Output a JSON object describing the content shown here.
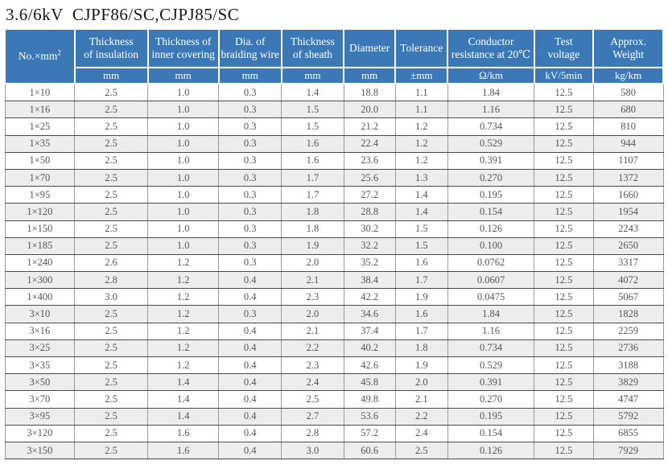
{
  "page": {
    "title": "3.6/6kV  CJPF86/SC,CJPJ85/SC"
  },
  "colors": {
    "header_blue": "#3c78b5",
    "stripe_gray": "#ededed",
    "row_border_dark": "#4a4a4a",
    "column_border_gray": "#9a9a9a",
    "body_text": "#555555",
    "header_text": "#ffffff"
  },
  "table": {
    "row_header": {
      "label": "No.×mm",
      "sup": "2"
    },
    "columns": [
      {
        "line1": "Thickness",
        "line2": "of insulation",
        "unit": "mm"
      },
      {
        "line1": "Thickness of",
        "line2": "inner covering",
        "unit": "mm"
      },
      {
        "line1": "Dia. of",
        "line2": "braiding wire",
        "unit": "mm"
      },
      {
        "line1": "Thickness",
        "line2": "of sheath",
        "unit": "mm"
      },
      {
        "line1": "Diameter",
        "line2": "",
        "unit": "mm"
      },
      {
        "line1": "Tolerance",
        "line2": "",
        "unit": "±mm"
      },
      {
        "line1": "Conductor",
        "line2": "resistance at 20℃",
        "unit": "Ω/km"
      },
      {
        "line1": "Test",
        "line2": "voltage",
        "unit": "kV/5min"
      },
      {
        "line1": "Approx.",
        "line2": "Weight",
        "unit": "kg/km"
      }
    ],
    "rows": [
      [
        "1×10",
        "2.5",
        "1.0",
        "0.3",
        "1.4",
        "18.8",
        "1.1",
        "1.84",
        "12.5",
        "580"
      ],
      [
        "1×16",
        "2.5",
        "1.0",
        "0.3",
        "1.5",
        "20.0",
        "1.1",
        "1.16",
        "12.5",
        "680"
      ],
      [
        "1×25",
        "2.5",
        "1.0",
        "0.3",
        "1.5",
        "21.2",
        "1.2",
        "0.734",
        "12.5",
        "810"
      ],
      [
        "1×35",
        "2.5",
        "1.0",
        "0.3",
        "1.6",
        "22.4",
        "1.2",
        "0.529",
        "12.5",
        "944"
      ],
      [
        "1×50",
        "2.5",
        "1.0",
        "0.3",
        "1.6",
        "23.6",
        "1.2",
        "0.391",
        "12.5",
        "1107"
      ],
      [
        "1×70",
        "2.5",
        "1.0",
        "0.3",
        "1.7",
        "25.6",
        "1.3",
        "0.270",
        "12.5",
        "1372"
      ],
      [
        "1×95",
        "2.5",
        "1.0",
        "0.3",
        "1.7",
        "27.2",
        "1.4",
        "0.195",
        "12.5",
        "1660"
      ],
      [
        "1×120",
        "2.5",
        "1.0",
        "0.3",
        "1.8",
        "28.8",
        "1.4",
        "0.154",
        "12.5",
        "1954"
      ],
      [
        "1×150",
        "2.5",
        "1.0",
        "0.3",
        "1.8",
        "30.2",
        "1.5",
        "0.126",
        "12.5",
        "2243"
      ],
      [
        "1×185",
        "2.5",
        "1.0",
        "0.3",
        "1.9",
        "32.2",
        "1.5",
        "0.100",
        "12.5",
        "2650"
      ],
      [
        "1×240",
        "2.6",
        "1.2",
        "0.3",
        "2.0",
        "35.2",
        "1.6",
        "0.0762",
        "12.5",
        "3317"
      ],
      [
        "1×300",
        "2.8",
        "1.2",
        "0.4",
        "2.1",
        "38.4",
        "1.7",
        "0.0607",
        "12.5",
        "4072"
      ],
      [
        "1×400",
        "3.0",
        "1.2",
        "0.4",
        "2.3",
        "42.2",
        "1.9",
        "0.0475",
        "12.5",
        "5067"
      ],
      [
        "3×10",
        "2.5",
        "1.2",
        "0.3",
        "2.0",
        "34.6",
        "1.6",
        "1.84",
        "12.5",
        "1828"
      ],
      [
        "3×16",
        "2.5",
        "1.2",
        "0.4",
        "2.1",
        "37.4",
        "1.7",
        "1.16",
        "12.5",
        "2259"
      ],
      [
        "3×25",
        "2.5",
        "1.2",
        "0.4",
        "2.2",
        "40.2",
        "1.8",
        "0.734",
        "12.5",
        "2736"
      ],
      [
        "3×35",
        "2.5",
        "1.2",
        "0.4",
        "2.3",
        "42.6",
        "1.9",
        "0.529",
        "12.5",
        "3188"
      ],
      [
        "3×50",
        "2.5",
        "1.4",
        "0.4",
        "2.4",
        "45.8",
        "2.0",
        "0.391",
        "12.5",
        "3829"
      ],
      [
        "3×70",
        "2.5",
        "1.4",
        "0.4",
        "2.5",
        "49.8",
        "2.1",
        "0.270",
        "12.5",
        "4747"
      ],
      [
        "3×95",
        "2.5",
        "1.4",
        "0.4",
        "2.7",
        "53.6",
        "2.2",
        "0.195",
        "12.5",
        "5792"
      ],
      [
        "3×120",
        "2.5",
        "1.6",
        "0.4",
        "2.8",
        "57.2",
        "2.4",
        "0.154",
        "12.5",
        "6855"
      ],
      [
        "3×150",
        "2.5",
        "1.6",
        "0.4",
        "3.0",
        "60.6",
        "2.5",
        "0.126",
        "12.5",
        "7929"
      ]
    ]
  }
}
